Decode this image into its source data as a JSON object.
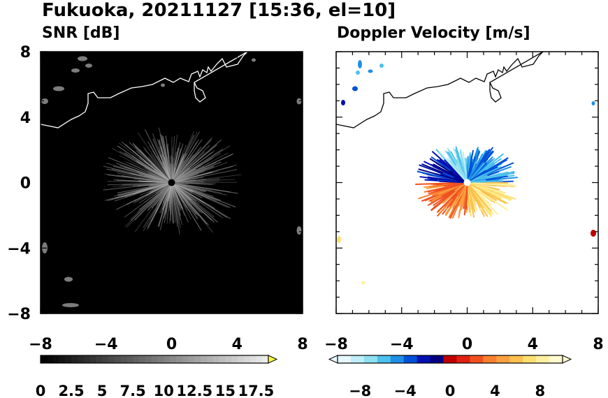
{
  "title": "Fukuoka, 20211127 [15:36, el=10]",
  "colors": {
    "snr_background": "#000000",
    "coastline_snr": "#ffffff",
    "coastline_doppler": "#000000",
    "echo_gray": "#b0b0b0"
  },
  "chart_data": [
    {
      "type": "heatmap",
      "title": "SNR [dB]",
      "xlim": [
        -8,
        8
      ],
      "ylim": [
        -8,
        8
      ],
      "x_ticks": [
        "−8",
        "−4",
        "0",
        "4",
        "8"
      ],
      "y_ticks": [
        "8",
        "4",
        "0",
        "−4",
        "−8"
      ],
      "colorbar": {
        "range": [
          0,
          18.5
        ],
        "extend": "max",
        "tick_labels": [
          "0",
          "2.5",
          "5",
          "7.5",
          "10",
          "12.5",
          "15",
          "17.5"
        ],
        "tick_values": [
          0,
          2.5,
          5,
          7.5,
          10,
          12.5,
          15,
          17.5
        ]
      }
    },
    {
      "type": "heatmap",
      "title": "Doppler Velocity [m/s]",
      "xlim": [
        -8,
        8
      ],
      "ylim": [
        -8,
        8
      ],
      "x_ticks": [
        "−8",
        "−4",
        "0",
        "4",
        "8"
      ],
      "y_ticks": [
        "8",
        "4",
        "0",
        "−4",
        "−8"
      ],
      "colorbar": {
        "range": [
          -10,
          10
        ],
        "extend": "both",
        "tick_labels": [
          "−8",
          "−4",
          "0",
          "4",
          "8"
        ],
        "tick_values": [
          -8,
          -4,
          0,
          4,
          8
        ],
        "colors_low_to_high": [
          "#e8f8ff",
          "#bfeef8",
          "#8fe0f0",
          "#4cc0ee",
          "#1e90e6",
          "#0050d8",
          "#0010b0",
          "#000080",
          "#c00000",
          "#e02010",
          "#f05020",
          "#f88030",
          "#fba040",
          "#fcc050",
          "#fde070",
          "#fef0a0",
          "#fffad0"
        ]
      }
    }
  ]
}
